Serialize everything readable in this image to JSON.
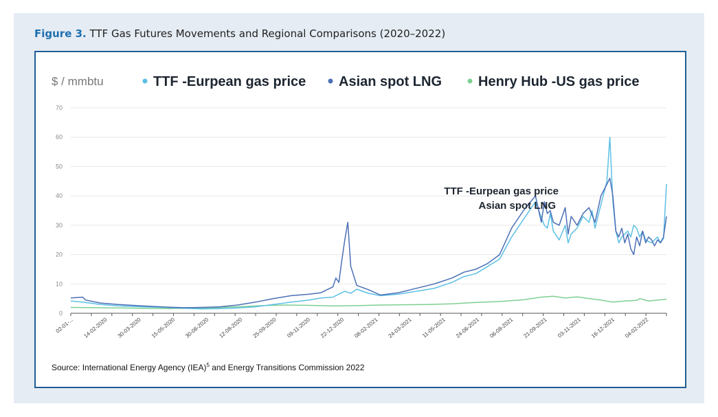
{
  "figure": {
    "label": "Figure 3.",
    "title": "TTF Gas Futures Movements and Regional Comparisons (2020–2022)",
    "source_prefix": "Source: International Energy Agency (IEA)",
    "source_ref": "5",
    "source_suffix": " and Energy Transitions Commission 2022"
  },
  "chart_data": {
    "type": "line",
    "ylabel": "$ / mmbtu",
    "ylim": [
      0,
      70
    ],
    "yticks": [
      0,
      10,
      20,
      30,
      40,
      50,
      60,
      70
    ],
    "grid": true,
    "legend_position": "top",
    "x_date_range": [
      "2020-01-02",
      "2022-03-08"
    ],
    "xtick_labels": [
      "02-01-...",
      "14-02-2020",
      "30-03-2020",
      "15-05-2020",
      "30-06-2020",
      "12-08-2020",
      "25-09-2020",
      "09-11-2020",
      "22-12-2020",
      "08-02-2021",
      "24-03-2021",
      "11-05-2021",
      "24-06-2021",
      "06-08-2021",
      "21-09-2021",
      "03-11-2021",
      "16-12-2021",
      "04-02-2022"
    ],
    "series": [
      {
        "name": "TTF -Eurpean gas price",
        "color": "#5bbfe4",
        "x": [
          0,
          0.02,
          0.05,
          0.08,
          0.12,
          0.16,
          0.19,
          0.22,
          0.25,
          0.28,
          0.31,
          0.34,
          0.37,
          0.4,
          0.42,
          0.44,
          0.45,
          0.455,
          0.46,
          0.47,
          0.48,
          0.5,
          0.52,
          0.55,
          0.58,
          0.61,
          0.64,
          0.66,
          0.68,
          0.7,
          0.72,
          0.74,
          0.76,
          0.78,
          0.795,
          0.8,
          0.805,
          0.81,
          0.82,
          0.83,
          0.835,
          0.84,
          0.85,
          0.86,
          0.87,
          0.875,
          0.88,
          0.89,
          0.9,
          0.905,
          0.91,
          0.915,
          0.92,
          0.925,
          0.93,
          0.935,
          0.94,
          0.945,
          0.95,
          0.955,
          0.96,
          0.965,
          0.97,
          0.975,
          0.98,
          0.985,
          0.99,
          0.995,
          1.0
        ],
        "values": [
          4.2,
          3.8,
          3.0,
          2.5,
          2.2,
          2.0,
          1.7,
          1.5,
          1.6,
          1.8,
          2.2,
          3.0,
          3.8,
          4.5,
          5.2,
          5.5,
          6.5,
          7.0,
          7.5,
          6.8,
          8.2,
          6.8,
          6.0,
          6.5,
          7.5,
          8.5,
          10.5,
          12.5,
          13.5,
          16.0,
          18.5,
          26.0,
          32.0,
          38.0,
          30.0,
          29.0,
          34.0,
          28.0,
          25.0,
          30.0,
          24.0,
          27.0,
          29.0,
          33.0,
          31.0,
          35.0,
          29.0,
          37.0,
          45.0,
          60.0,
          38.0,
          28.0,
          24.0,
          26.0,
          27.0,
          28.0,
          26.0,
          30.0,
          29.0,
          26.0,
          28.0,
          25.0,
          24.5,
          24.0,
          25.0,
          26.0,
          24.0,
          25.5,
          44.0
        ]
      },
      {
        "name": "Asian spot LNG",
        "color": "#4a6fb5",
        "x": [
          0,
          0.02,
          0.025,
          0.05,
          0.08,
          0.12,
          0.16,
          0.19,
          0.22,
          0.25,
          0.28,
          0.31,
          0.34,
          0.37,
          0.4,
          0.42,
          0.44,
          0.445,
          0.45,
          0.455,
          0.46,
          0.465,
          0.47,
          0.48,
          0.5,
          0.52,
          0.55,
          0.58,
          0.61,
          0.64,
          0.66,
          0.68,
          0.7,
          0.72,
          0.74,
          0.76,
          0.78,
          0.79,
          0.795,
          0.8,
          0.805,
          0.81,
          0.82,
          0.83,
          0.835,
          0.84,
          0.85,
          0.86,
          0.87,
          0.88,
          0.89,
          0.9,
          0.905,
          0.91,
          0.915,
          0.92,
          0.925,
          0.93,
          0.935,
          0.94,
          0.945,
          0.95,
          0.955,
          0.96,
          0.965,
          0.97,
          0.975,
          0.98,
          0.985,
          0.99,
          0.995,
          1.0
        ],
        "values": [
          5.2,
          5.5,
          4.5,
          3.5,
          3.0,
          2.5,
          2.1,
          1.9,
          2.0,
          2.2,
          2.8,
          3.8,
          5.0,
          6.0,
          6.5,
          7.0,
          9.0,
          12.0,
          10.5,
          18.0,
          25.0,
          31.0,
          16.0,
          9.5,
          8.0,
          6.2,
          7.0,
          8.5,
          10.0,
          12.0,
          14.0,
          15.0,
          17.0,
          20.0,
          29.0,
          35.0,
          40.0,
          31.0,
          38.0,
          34.0,
          35.0,
          31.0,
          30.0,
          36.0,
          27.0,
          33.0,
          30.0,
          34.0,
          36.0,
          31.0,
          40.0,
          44.0,
          46.0,
          40.0,
          28.0,
          26.0,
          29.0,
          24.0,
          27.0,
          22.0,
          20.0,
          26.0,
          23.0,
          28.0,
          24.0,
          26.0,
          25.0,
          23.0,
          25.0,
          24.0,
          26.0,
          33.0
        ]
      },
      {
        "name": "Henry Hub -US gas price",
        "color": "#7ecf92",
        "x": [
          0,
          0.04,
          0.08,
          0.12,
          0.16,
          0.2,
          0.24,
          0.28,
          0.32,
          0.36,
          0.4,
          0.44,
          0.48,
          0.52,
          0.56,
          0.6,
          0.64,
          0.68,
          0.72,
          0.76,
          0.79,
          0.81,
          0.83,
          0.85,
          0.87,
          0.89,
          0.91,
          0.93,
          0.95,
          0.955,
          0.97,
          0.99,
          1.0
        ],
        "values": [
          2.0,
          1.9,
          1.8,
          1.7,
          1.6,
          1.7,
          1.9,
          2.2,
          2.6,
          2.8,
          2.7,
          2.5,
          2.6,
          2.8,
          2.9,
          3.0,
          3.2,
          3.7,
          4.0,
          4.6,
          5.5,
          5.8,
          5.2,
          5.6,
          5.0,
          4.5,
          3.8,
          4.2,
          4.4,
          5.0,
          4.2,
          4.6,
          4.8
        ]
      }
    ],
    "annotations": [
      "TTF -Eurpean gas price",
      "Asian spot LNG"
    ]
  }
}
